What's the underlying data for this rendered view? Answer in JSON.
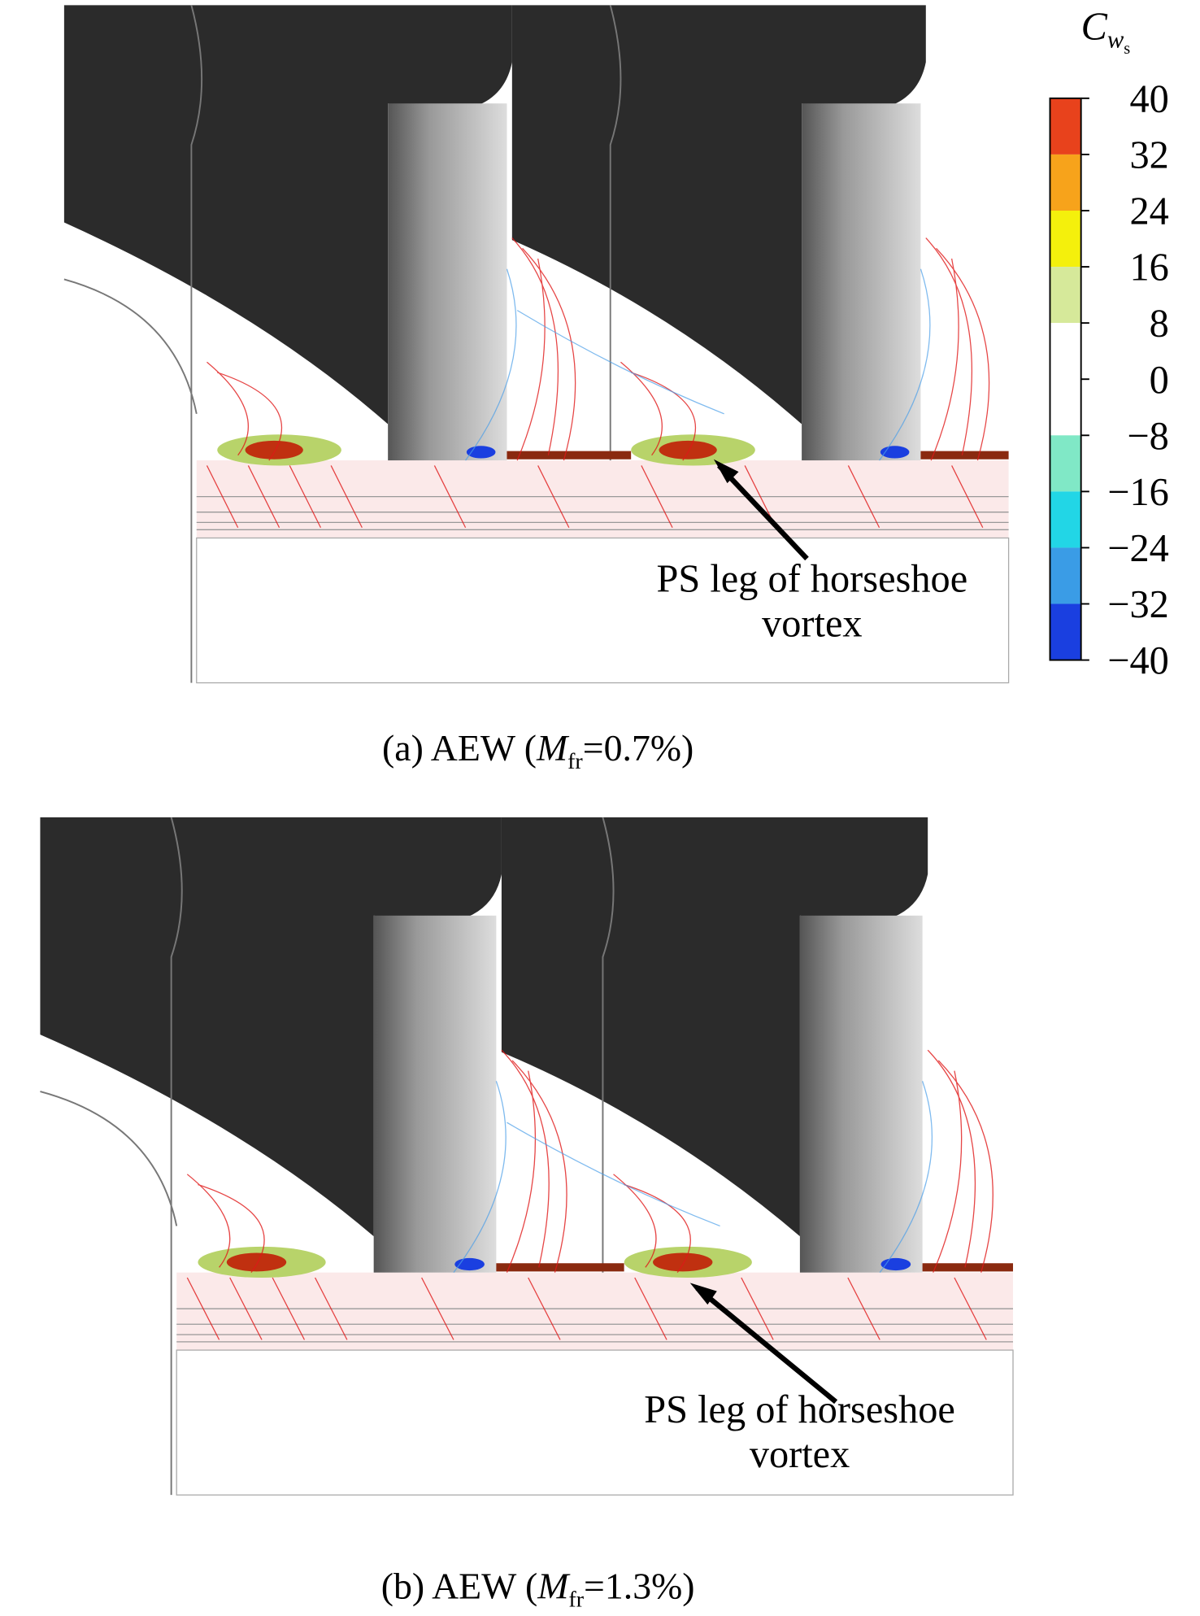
{
  "colorbar": {
    "title": {
      "symbol": "C",
      "subscript": "w",
      "subsubscript": "s"
    },
    "ticks": [
      40,
      32,
      24,
      16,
      8,
      0,
      {
        "value": -8,
        "label": "−8"
      },
      {
        "value": -16,
        "label": "−16"
      },
      {
        "value": -24,
        "label": "−24"
      },
      {
        "value": -32,
        "label": "−32"
      },
      {
        "value": -40,
        "label": "−40"
      }
    ],
    "colors": [
      "#e8421c",
      "#f7a31b",
      "#f4f00c",
      "#d6e99a",
      "#ffffff",
      "#ffffff",
      "#80e8c6",
      "#22d6e6",
      "#3a9ce6",
      "#1a3fe0"
    ]
  },
  "panels": [
    {
      "caption": {
        "prefix": "(a) AEW (",
        "symbol": "M",
        "subscript": "fr",
        "suffix": "=0.7%)"
      },
      "annotation": [
        "PS leg of horseshoe",
        "vortex"
      ]
    },
    {
      "caption": {
        "prefix": "(b) AEW (",
        "symbol": "M",
        "subscript": "fr",
        "suffix": "=1.3%)"
      },
      "annotation": [
        "PS leg of horseshoe",
        "vortex"
      ]
    }
  ]
}
